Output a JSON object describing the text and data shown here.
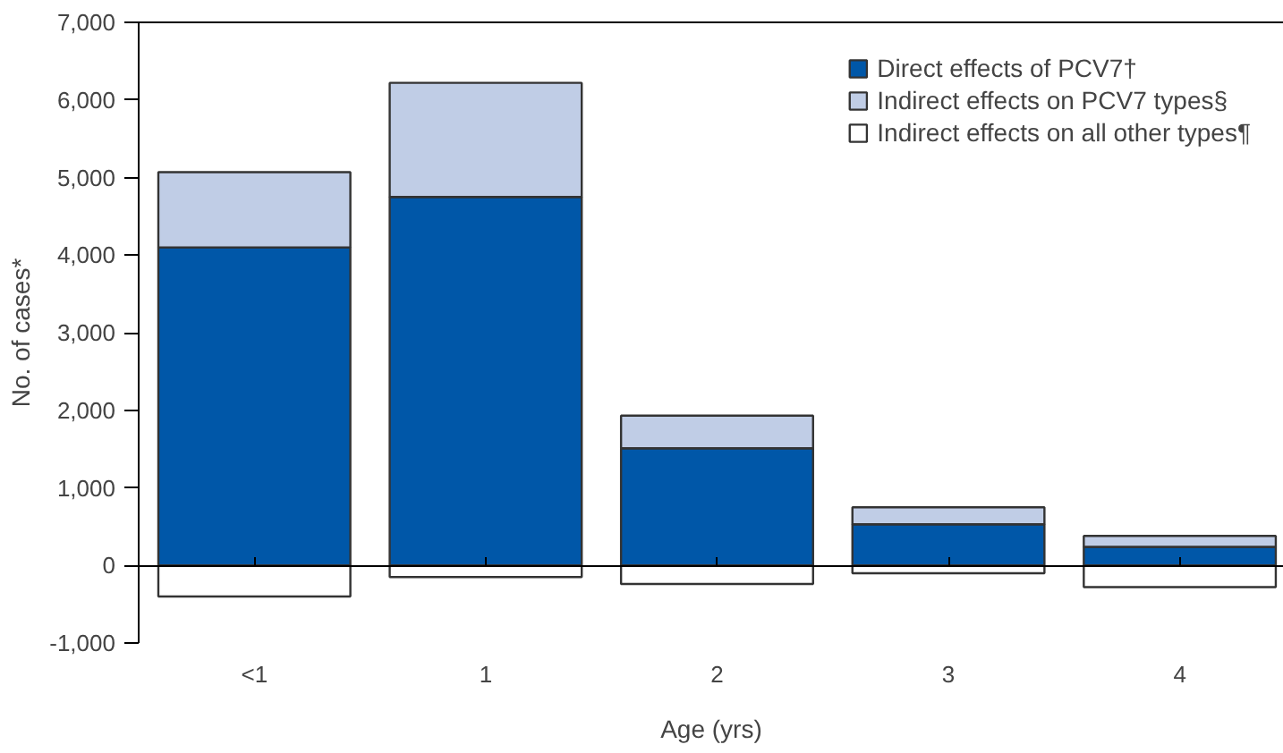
{
  "chart_data": {
    "type": "bar",
    "stacked": true,
    "xlabel": "Age (yrs)",
    "ylabel": "No. of cases*",
    "categories": [
      "<1",
      "1",
      "2",
      "3",
      "4"
    ],
    "series": [
      {
        "name": "Direct effects of PCV7†",
        "color": "#0057a8",
        "values": [
          4100,
          4750,
          1510,
          530,
          240
        ]
      },
      {
        "name": "Indirect effects on PCV7 types§",
        "color": "#c0cde6",
        "values": [
          970,
          1470,
          420,
          220,
          140
        ]
      },
      {
        "name": "Indirect effects on all other types¶",
        "color": "#ffffff",
        "values": [
          -400,
          -150,
          -240,
          -100,
          -280
        ]
      }
    ],
    "ylim": [
      -1000,
      7000
    ],
    "yticks": [
      {
        "value": -1000,
        "label": "-1,000"
      },
      0,
      {
        "value": 1000,
        "label": "1,000"
      },
      {
        "value": 2000,
        "label": "2,000"
      },
      {
        "value": 3000,
        "label": "3,000"
      },
      {
        "value": 4000,
        "label": "4,000"
      },
      {
        "value": 5000,
        "label": "5,000"
      },
      {
        "value": 6000,
        "label": "6,000"
      },
      {
        "value": 7000,
        "label": "7,000"
      }
    ],
    "legend": "top right"
  }
}
